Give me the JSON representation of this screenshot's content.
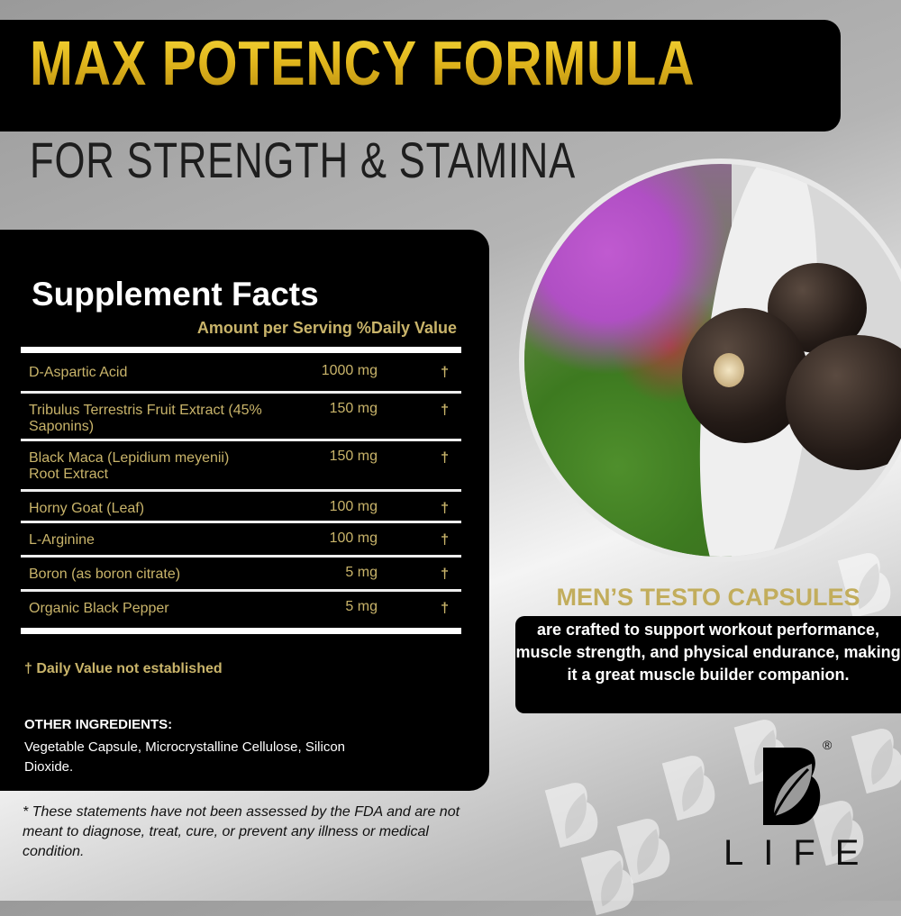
{
  "header": {
    "title": "MAX POTENCY FORMULA",
    "subtitle": "FOR STRENGTH & STAMINA"
  },
  "facts": {
    "title": "Supplement Facts",
    "columns": "Amount per Serving %Daily Value",
    "rows": [
      {
        "name": "D-Aspartic Acid",
        "amount": "1000 mg",
        "dv": "†"
      },
      {
        "name": "Tribulus Terrestris Fruit Extract (45% Saponins)",
        "amount": "150 mg",
        "dv": "†"
      },
      {
        "name": "Black Maca (Lepidium meyenii) Root Extract",
        "amount": "150 mg",
        "dv": "†"
      },
      {
        "name": "Horny Goat (Leaf)",
        "amount": "100 mg",
        "dv": "†"
      },
      {
        "name": "L-Arginine",
        "amount": "100 mg",
        "dv": "†"
      },
      {
        "name": "Boron (as boron citrate)",
        "amount": "5 mg",
        "dv": "†"
      },
      {
        "name": "Organic Black Pepper",
        "amount": "5 mg",
        "dv": "†"
      }
    ],
    "dv_note": "† Daily Value not established",
    "other_heading": "OTHER INGREDIENTS:",
    "other_text": "Vegetable Capsule, Microcrystalline Cellulose, Silicon Dioxide."
  },
  "disclaimer": "* These statements have not been assessed by the FDA and are not meant to diagnose, treat, cure, or prevent any illness or medical condition.",
  "promo": {
    "heading": "MEN’S TESTO CAPSULES",
    "text": "are crafted to support workout performance, muscle strength, and physical endurance, making it a great muscle builder companion."
  },
  "brand": {
    "logo_letter": "B",
    "name": "LIFE",
    "registered": "®"
  },
  "colors": {
    "gold": "#c9b46a",
    "title_gold": "#e8c21c",
    "panel": "#000000"
  }
}
